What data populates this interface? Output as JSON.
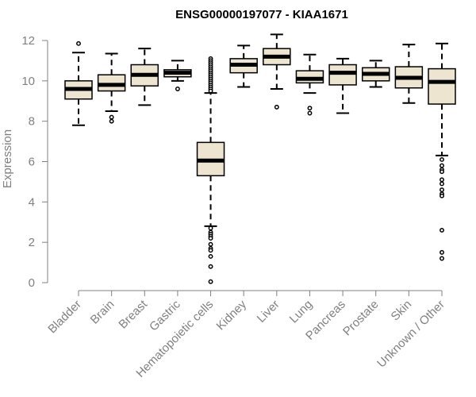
{
  "chart_data": {
    "type": "boxplot",
    "title": "ENSG00000197077 - KIAA1671",
    "xlabel": "",
    "ylabel": "Expression",
    "ylim": [
      0,
      12
    ],
    "yticks": [
      0,
      2,
      4,
      6,
      8,
      10,
      12
    ],
    "colors": {
      "box_fill": "#ede5d0",
      "box_stroke": "#000000",
      "axis": "#808080",
      "median": "#000000"
    },
    "categories": [
      "Bladder",
      "Brain",
      "Breast",
      "Gastric",
      "Hematopoietic cells",
      "Kidney",
      "Liver",
      "Lung",
      "Pancreas",
      "Prostate",
      "Skin",
      "Unknown / Other"
    ],
    "boxes": [
      {
        "name": "Bladder",
        "whisker_low": 7.8,
        "q1": 9.1,
        "median": 9.6,
        "q3": 10.0,
        "whisker_high": 11.4,
        "outliers": [
          11.85
        ]
      },
      {
        "name": "Brain",
        "whisker_low": 8.5,
        "q1": 9.5,
        "median": 9.8,
        "q3": 10.3,
        "whisker_high": 11.35,
        "outliers": [
          8.2,
          8.0
        ]
      },
      {
        "name": "Breast",
        "whisker_low": 8.8,
        "q1": 9.75,
        "median": 10.3,
        "q3": 10.8,
        "whisker_high": 11.6,
        "outliers": []
      },
      {
        "name": "Gastric",
        "whisker_low": 10.0,
        "q1": 10.2,
        "median": 10.4,
        "q3": 10.55,
        "whisker_high": 11.0,
        "outliers": [
          9.6
        ]
      },
      {
        "name": "Hematopoietic cells",
        "whisker_low": 2.8,
        "q1": 5.3,
        "median": 6.05,
        "q3": 6.95,
        "whisker_high": 9.4,
        "outliers": [
          11.1,
          11.0,
          10.9,
          10.8,
          10.7,
          10.6,
          10.5,
          10.4,
          10.3,
          10.2,
          10.1,
          10.0,
          9.9,
          9.8,
          9.7,
          9.6,
          9.5,
          2.7,
          2.5,
          2.4,
          2.3,
          2.2,
          1.9,
          1.7,
          1.6,
          1.3,
          0.8,
          0.05
        ]
      },
      {
        "name": "Kidney",
        "whisker_low": 9.7,
        "q1": 10.4,
        "median": 10.8,
        "q3": 11.1,
        "whisker_high": 11.75,
        "outliers": []
      },
      {
        "name": "Liver",
        "whisker_low": 9.6,
        "q1": 10.8,
        "median": 11.2,
        "q3": 11.6,
        "whisker_high": 12.3,
        "outliers": [
          8.7
        ]
      },
      {
        "name": "Lung",
        "whisker_low": 9.4,
        "q1": 9.9,
        "median": 10.1,
        "q3": 10.5,
        "whisker_high": 11.3,
        "outliers": [
          8.65,
          8.4
        ]
      },
      {
        "name": "Pancreas",
        "whisker_low": 8.4,
        "q1": 9.8,
        "median": 10.4,
        "q3": 10.8,
        "whisker_high": 11.1,
        "outliers": []
      },
      {
        "name": "Prostate",
        "whisker_low": 9.7,
        "q1": 10.0,
        "median": 10.35,
        "q3": 10.65,
        "whisker_high": 11.0,
        "outliers": []
      },
      {
        "name": "Skin",
        "whisker_low": 8.9,
        "q1": 9.65,
        "median": 10.15,
        "q3": 10.7,
        "whisker_high": 11.8,
        "outliers": []
      },
      {
        "name": "Unknown / Other",
        "whisker_low": 6.3,
        "q1": 8.85,
        "median": 9.95,
        "q3": 10.6,
        "whisker_high": 11.85,
        "outliers": [
          6.1,
          5.8,
          5.6,
          5.5,
          5.1,
          4.9,
          4.6,
          4.4,
          4.3,
          2.6,
          1.5,
          1.2
        ]
      }
    ]
  }
}
